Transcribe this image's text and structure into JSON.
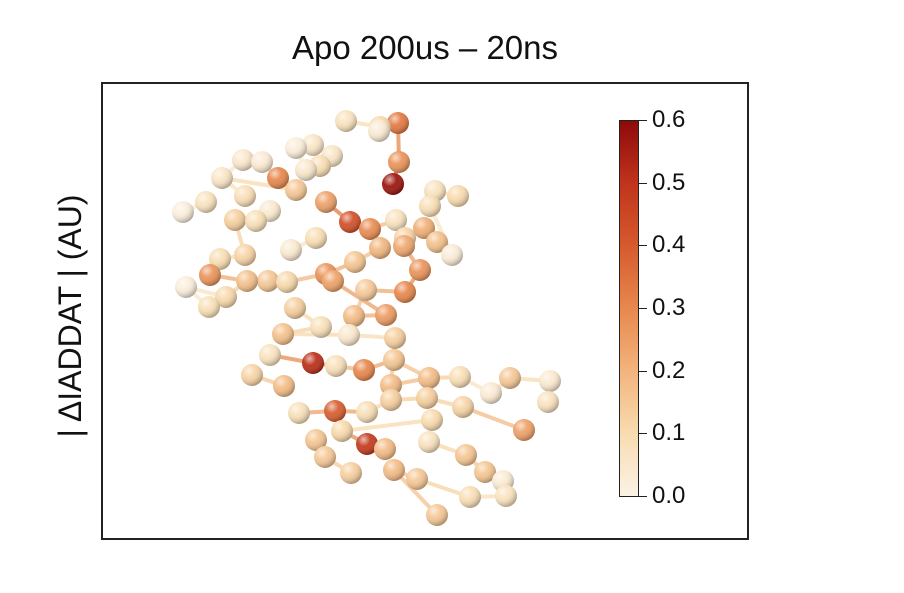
{
  "title": "Apo 200us – 20ns",
  "ylabel": "| ΔIADDAT | (AU)",
  "colorbar": {
    "ticks": [
      "0.6",
      "0.5",
      "0.4",
      "0.3",
      "0.2",
      "0.1",
      "0.0"
    ],
    "range": [
      0.0,
      0.6
    ],
    "colors": [
      "#fbf2e6",
      "#f8dcb0",
      "#f2b47d",
      "#e7884e",
      "#d65a2e",
      "#c0341c",
      "#8e0a0a"
    ]
  }
}
